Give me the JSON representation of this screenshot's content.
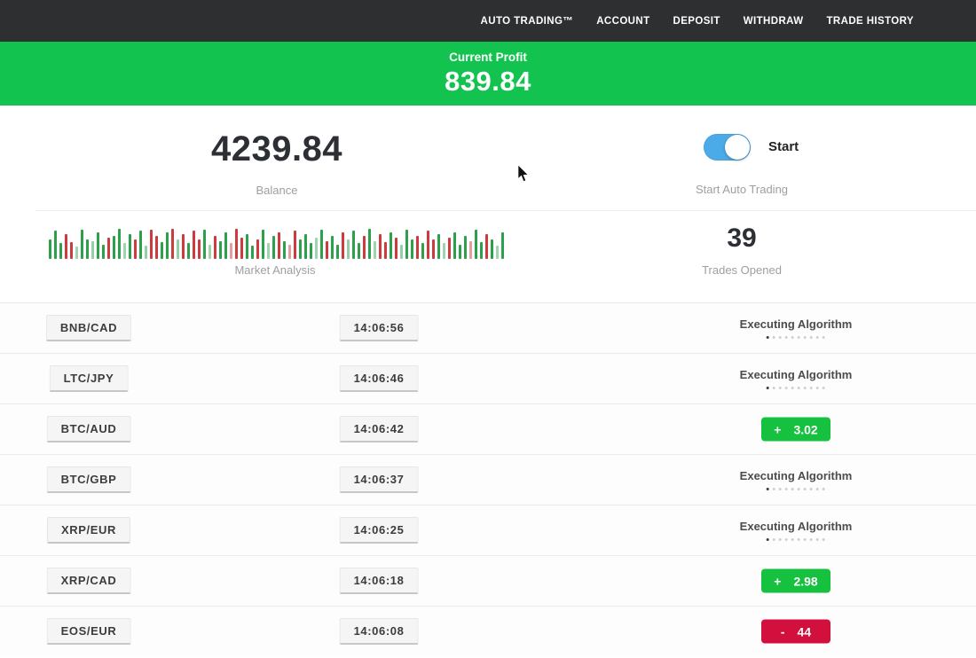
{
  "navbar": {
    "items": [
      "AUTO TRADING™",
      "ACCOUNT",
      "DEPOSIT",
      "WITHDRAW",
      "TRADE HISTORY"
    ]
  },
  "profit_banner": {
    "label": "Current Profit",
    "value": "839.84"
  },
  "balance": {
    "value": "4239.84",
    "label": "Balance"
  },
  "auto_trading": {
    "toggle_label": "Start",
    "label": "Start Auto Trading",
    "toggle_state": "on"
  },
  "market": {
    "label": "Market Analysis"
  },
  "trades_opened": {
    "value": "39",
    "label": "Trades Opened"
  },
  "statuses": {
    "executing_label": "Executing Algorithm",
    "executing_dots": 10
  },
  "colors": {
    "banner_green": "#12c44f",
    "toggle_blue": "#4babe8",
    "gain_green": "#15c13e",
    "loss_red": "#d30f3e",
    "bar_green": "#2ca04a",
    "bar_red": "#cc3b3d",
    "nav_bg": "#2e2f31"
  },
  "trades": [
    {
      "pair": "BNB/CAD",
      "time": "14:06:56",
      "status": {
        "type": "executing"
      }
    },
    {
      "pair": "LTC/JPY",
      "time": "14:06:46",
      "status": {
        "type": "executing"
      }
    },
    {
      "pair": "BTC/AUD",
      "time": "14:06:42",
      "status": {
        "type": "gain",
        "sign": "+",
        "value": "3.02"
      }
    },
    {
      "pair": "BTC/GBP",
      "time": "14:06:37",
      "status": {
        "type": "executing"
      }
    },
    {
      "pair": "XRP/EUR",
      "time": "14:06:25",
      "status": {
        "type": "executing"
      }
    },
    {
      "pair": "XRP/CAD",
      "time": "14:06:18",
      "status": {
        "type": "gain",
        "sign": "+",
        "value": "2.98"
      }
    },
    {
      "pair": "EOS/EUR",
      "time": "14:06:08",
      "status": {
        "type": "loss",
        "sign": "-",
        "value": "44"
      }
    }
  ],
  "chart_data": {
    "type": "bar",
    "title": "Market Analysis",
    "note": "relative-height green/red market pulse bars, bottom aligned, no axes",
    "bars": [
      {
        "c": "g",
        "h": 0.62
      },
      {
        "c": "g",
        "h": 0.88
      },
      {
        "c": "g",
        "h": 0.5
      },
      {
        "c": "r",
        "h": 0.78
      },
      {
        "c": "r",
        "h": 0.52
      },
      {
        "c": "g",
        "h": 0.4,
        "o": 0.45
      },
      {
        "c": "g",
        "h": 0.92
      },
      {
        "c": "g",
        "h": 0.62
      },
      {
        "c": "g",
        "h": 0.55,
        "o": 0.5
      },
      {
        "c": "g",
        "h": 0.82
      },
      {
        "c": "g",
        "h": 0.45
      },
      {
        "c": "r",
        "h": 0.68
      },
      {
        "c": "g",
        "h": 0.72
      },
      {
        "c": "g",
        "h": 0.95
      },
      {
        "c": "g",
        "h": 0.5,
        "o": 0.45
      },
      {
        "c": "g",
        "h": 0.78
      },
      {
        "c": "r",
        "h": 0.62
      },
      {
        "c": "g",
        "h": 0.88
      },
      {
        "c": "g",
        "h": 0.42,
        "o": 0.5
      },
      {
        "c": "r",
        "h": 0.92
      },
      {
        "c": "r",
        "h": 0.72
      },
      {
        "c": "g",
        "h": 0.52
      },
      {
        "c": "g",
        "h": 0.82
      },
      {
        "c": "r",
        "h": 0.95
      },
      {
        "c": "g",
        "h": 0.62,
        "o": 0.5
      },
      {
        "c": "r",
        "h": 0.78
      },
      {
        "c": "g",
        "h": 0.5
      },
      {
        "c": "r",
        "h": 0.88
      },
      {
        "c": "r",
        "h": 0.62
      },
      {
        "c": "g",
        "h": 0.92
      },
      {
        "c": "g",
        "h": 0.45,
        "o": 0.45
      },
      {
        "c": "r",
        "h": 0.72
      },
      {
        "c": "g",
        "h": 0.55
      },
      {
        "c": "g",
        "h": 0.82
      },
      {
        "c": "r",
        "h": 0.5,
        "o": 0.5
      },
      {
        "c": "r",
        "h": 0.95
      },
      {
        "c": "r",
        "h": 0.68
      },
      {
        "c": "g",
        "h": 0.78
      },
      {
        "c": "g",
        "h": 0.42
      },
      {
        "c": "r",
        "h": 0.62
      },
      {
        "c": "g",
        "h": 0.92
      },
      {
        "c": "g",
        "h": 0.5,
        "o": 0.45
      },
      {
        "c": "g",
        "h": 0.72
      },
      {
        "c": "r",
        "h": 0.82
      },
      {
        "c": "g",
        "h": 0.55
      },
      {
        "c": "r",
        "h": 0.45,
        "o": 0.5
      },
      {
        "c": "r",
        "h": 0.88
      },
      {
        "c": "g",
        "h": 0.62
      },
      {
        "c": "g",
        "h": 0.78
      },
      {
        "c": "g",
        "h": 0.5
      },
      {
        "c": "g",
        "h": 0.68,
        "o": 0.45
      },
      {
        "c": "g",
        "h": 0.92
      },
      {
        "c": "r",
        "h": 0.55
      },
      {
        "c": "g",
        "h": 0.72
      },
      {
        "c": "g",
        "h": 0.45
      },
      {
        "c": "r",
        "h": 0.82
      },
      {
        "c": "g",
        "h": 0.62,
        "o": 0.5
      },
      {
        "c": "g",
        "h": 0.88
      },
      {
        "c": "g",
        "h": 0.5
      },
      {
        "c": "r",
        "h": 0.72
      },
      {
        "c": "g",
        "h": 0.95
      },
      {
        "c": "g",
        "h": 0.55,
        "o": 0.45
      },
      {
        "c": "r",
        "h": 0.78
      },
      {
        "c": "r",
        "h": 0.52
      },
      {
        "c": "g",
        "h": 0.82
      },
      {
        "c": "r",
        "h": 0.68
      },
      {
        "c": "g",
        "h": 0.45,
        "o": 0.5
      },
      {
        "c": "g",
        "h": 0.92
      },
      {
        "c": "g",
        "h": 0.62
      },
      {
        "c": "r",
        "h": 0.72
      },
      {
        "c": "g",
        "h": 0.5
      },
      {
        "c": "r",
        "h": 0.88
      },
      {
        "c": "r",
        "h": 0.62
      },
      {
        "c": "g",
        "h": 0.78
      },
      {
        "c": "g",
        "h": 0.5,
        "o": 0.45
      },
      {
        "c": "r",
        "h": 0.68
      },
      {
        "c": "g",
        "h": 0.82
      },
      {
        "c": "g",
        "h": 0.45
      },
      {
        "c": "g",
        "h": 0.72
      },
      {
        "c": "r",
        "h": 0.55,
        "o": 0.5
      },
      {
        "c": "g",
        "h": 0.92
      },
      {
        "c": "g",
        "h": 0.52
      },
      {
        "c": "r",
        "h": 0.78
      },
      {
        "c": "g",
        "h": 0.62
      },
      {
        "c": "g",
        "h": 0.42,
        "o": 0.45
      },
      {
        "c": "g",
        "h": 0.82
      },
      {
        "c": "r",
        "h": 0.55
      },
      {
        "c": "g",
        "h": 0.68
      }
    ]
  }
}
